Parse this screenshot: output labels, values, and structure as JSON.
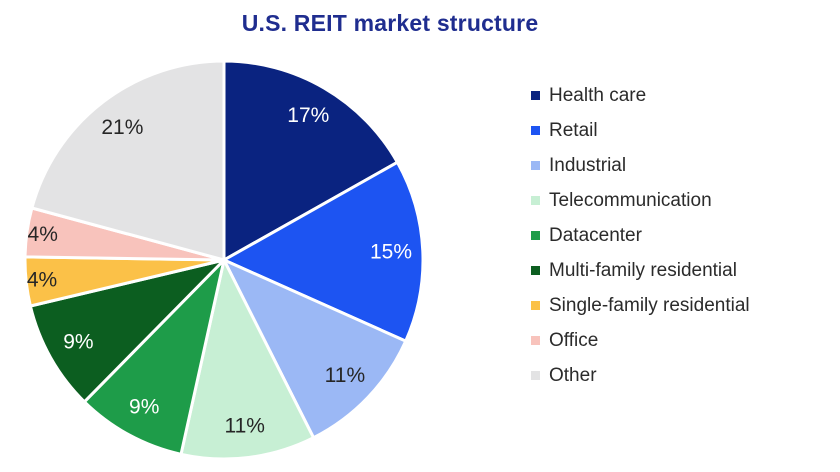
{
  "title": "U.S. REIT market structure",
  "colors": {
    "title_text": "#1f2d8f",
    "legend_text": "#2b2b2b",
    "slice_border": "#ffffff",
    "background": "#ffffff"
  },
  "chart_data": {
    "type": "pie",
    "title": "U.S. REIT market structure",
    "direction": "clockwise",
    "start_angle_deg": 0,
    "legend_position": "right",
    "value_suffix": "%",
    "slices": [
      {
        "label": "Health care",
        "value_pct": 17,
        "color": "#0a2380",
        "label_color": "#ffffff",
        "display_label": "17%"
      },
      {
        "label": "Retail",
        "value_pct": 15,
        "color": "#1d54f2",
        "label_color": "#ffffff",
        "display_label": "15%"
      },
      {
        "label": "Industrial",
        "value_pct": 11,
        "color": "#9bb8f5",
        "label_color": "#262626",
        "display_label": "11%"
      },
      {
        "label": "Telecommunication",
        "value_pct": 11,
        "color": "#c7efd4",
        "label_color": "#262626",
        "display_label": "11%"
      },
      {
        "label": "Datacenter",
        "value_pct": 9,
        "color": "#1e9c49",
        "label_color": "#ffffff",
        "display_label": "9%"
      },
      {
        "label": "Multi-family residential",
        "value_pct": 9,
        "color": "#0c5e20",
        "label_color": "#ffffff",
        "display_label": "9%"
      },
      {
        "label": "Single-family residential",
        "value_pct": 4,
        "color": "#fbc148",
        "label_color": "#262626",
        "display_label": "4%"
      },
      {
        "label": "Office",
        "value_pct": 4,
        "color": "#f8c3bc",
        "label_color": "#262626",
        "display_label": "4%"
      },
      {
        "label": "Other",
        "value_pct": 21,
        "color": "#e3e3e4",
        "label_color": "#262626",
        "display_label": "21%"
      }
    ]
  }
}
